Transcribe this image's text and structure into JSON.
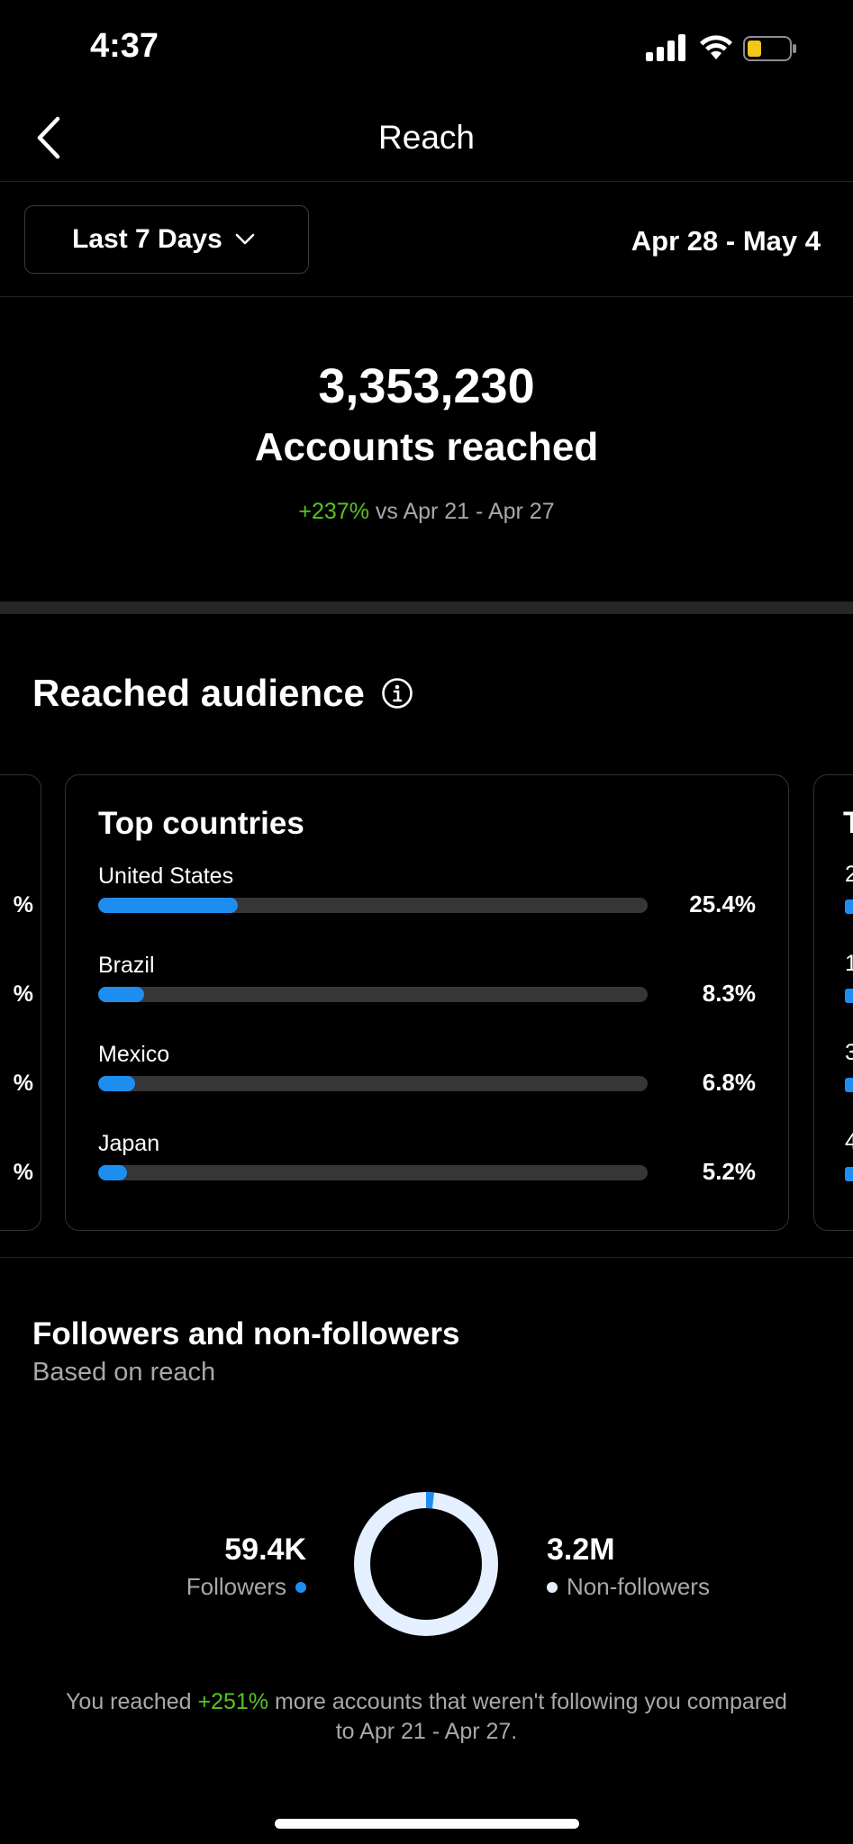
{
  "status_bar": {
    "time": "4:37"
  },
  "nav": {
    "title": "Reach"
  },
  "filter": {
    "range_label": "Last 7 Days",
    "date_range": "Apr 28 - May 4"
  },
  "summary": {
    "value": "3,353,230",
    "label": "Accounts reached",
    "change_pct": "+237%",
    "compare_text": " vs Apr 21 - Apr 27"
  },
  "audience": {
    "title": "Reached audience",
    "top_countries": {
      "title": "Top countries",
      "items": [
        {
          "name": "United States",
          "pct": "25.4%",
          "fraction": 0.254
        },
        {
          "name": "Brazil",
          "pct": "8.3%",
          "fraction": 0.083
        },
        {
          "name": "Mexico",
          "pct": "6.8%",
          "fraction": 0.068
        },
        {
          "name": "Japan",
          "pct": "5.2%",
          "fraction": 0.052
        }
      ]
    },
    "prev_card_pcts": [
      "%",
      "%",
      "%",
      "%"
    ],
    "next_card": {
      "title_peek": "T",
      "nums": [
        "2",
        "1",
        "3",
        "4"
      ]
    }
  },
  "followers": {
    "title": "Followers and non-followers",
    "subtitle": "Based on reach",
    "followers_value": "59.4K",
    "followers_label": "Followers",
    "non_followers_value": "3.2M",
    "non_followers_label": "Non-followers",
    "followers_fraction": 0.018,
    "note_prefix": "You reached ",
    "note_pct": "+251%",
    "note_suffix": " more accounts that weren't following you compared to Apr 21 - Apr 27."
  },
  "colors": {
    "accent_blue": "#1d8ef0",
    "positive_green": "#58c322",
    "battery_yellow": "#f5c518"
  }
}
